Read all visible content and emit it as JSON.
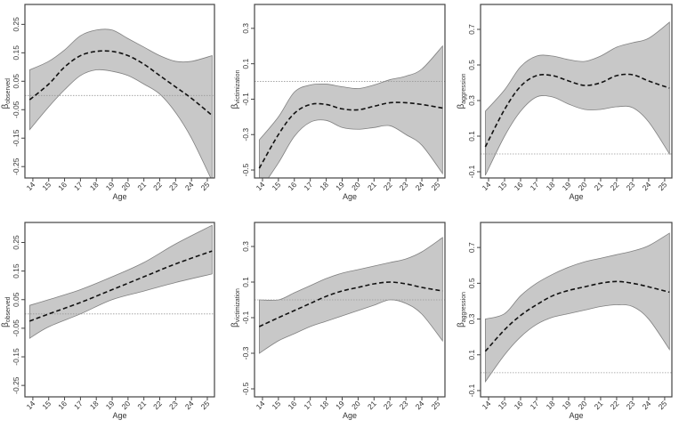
{
  "chart_data": [
    {
      "type": "line",
      "panel": "top-left",
      "xlabel": "Age",
      "ylabel": "β",
      "ylabel_sub": "observed",
      "xlim": [
        13.5,
        25.45
      ],
      "ylim": [
        -0.29,
        0.32
      ],
      "xticks": [
        14,
        15,
        16,
        17,
        18,
        19,
        20,
        21,
        22,
        23,
        24,
        25
      ],
      "yticks": [
        -0.25,
        -0.15,
        -0.05,
        0.05,
        0.15,
        0.25
      ],
      "yticklabels": [
        "-0.25",
        "-0.15",
        "-0.05",
        "0.05",
        "0.15",
        "0.25"
      ],
      "reference_line": 0,
      "x": [
        13.8,
        15,
        16,
        17,
        18,
        19,
        20,
        21,
        22,
        23,
        24,
        25.3
      ],
      "fit": [
        -0.015,
        0.04,
        0.1,
        0.14,
        0.155,
        0.155,
        0.14,
        0.11,
        0.07,
        0.03,
        -0.01,
        -0.07
      ],
      "lower": [
        -0.12,
        -0.04,
        0.02,
        0.07,
        0.09,
        0.085,
        0.07,
        0.04,
        0.005,
        -0.06,
        -0.15,
        -0.3
      ],
      "upper": [
        0.09,
        0.12,
        0.16,
        0.21,
        0.23,
        0.23,
        0.2,
        0.17,
        0.14,
        0.12,
        0.12,
        0.14
      ]
    },
    {
      "type": "line",
      "panel": "top-middle",
      "xlabel": "Age",
      "ylabel": "β",
      "ylabel_sub": "victimization",
      "xlim": [
        13.5,
        25.45
      ],
      "ylim": [
        -0.545,
        0.435
      ],
      "xticks": [
        14,
        15,
        16,
        17,
        18,
        19,
        20,
        21,
        22,
        23,
        24,
        25
      ],
      "yticks": [
        -0.5,
        -0.3,
        -0.1,
        0.1,
        0.3
      ],
      "yticklabels": [
        "-0.5",
        "-0.3",
        "-0.1",
        "0.1",
        "0.3"
      ],
      "reference_line": 0,
      "x": [
        13.8,
        15,
        16,
        17,
        18,
        19,
        20,
        21,
        22,
        23,
        24,
        25.3
      ],
      "fit": [
        -0.49,
        -0.3,
        -0.18,
        -0.13,
        -0.13,
        -0.155,
        -0.16,
        -0.14,
        -0.12,
        -0.12,
        -0.13,
        -0.15
      ],
      "lower": [
        -0.62,
        -0.46,
        -0.31,
        -0.23,
        -0.22,
        -0.26,
        -0.27,
        -0.26,
        -0.25,
        -0.3,
        -0.36,
        -0.52
      ],
      "upper": [
        -0.33,
        -0.2,
        -0.06,
        -0.02,
        -0.015,
        -0.03,
        -0.04,
        -0.02,
        0.01,
        0.03,
        0.07,
        0.2
      ]
    },
    {
      "type": "line",
      "panel": "top-right",
      "xlabel": "Age",
      "ylabel": "β",
      "ylabel_sub": "aggression",
      "xlim": [
        13.5,
        25.45
      ],
      "ylim": [
        -0.135,
        0.84
      ],
      "xticks": [
        14,
        15,
        16,
        17,
        18,
        19,
        20,
        21,
        22,
        23,
        24,
        25
      ],
      "yticks": [
        -0.1,
        0.1,
        0.3,
        0.5,
        0.7
      ],
      "yticklabels": [
        "-0.1",
        "0.1",
        "0.3",
        "0.5",
        "0.7"
      ],
      "reference_line": 0,
      "x": [
        13.8,
        15,
        16,
        17,
        18,
        19,
        20,
        21,
        22,
        23,
        24,
        25.3
      ],
      "fit": [
        0.04,
        0.25,
        0.38,
        0.44,
        0.44,
        0.41,
        0.385,
        0.4,
        0.44,
        0.445,
        0.41,
        0.37
      ],
      "lower": [
        -0.12,
        0.1,
        0.24,
        0.32,
        0.32,
        0.28,
        0.25,
        0.25,
        0.265,
        0.26,
        0.18,
        0.0
      ],
      "upper": [
        0.24,
        0.36,
        0.49,
        0.55,
        0.55,
        0.53,
        0.52,
        0.55,
        0.6,
        0.625,
        0.65,
        0.74
      ]
    },
    {
      "type": "line",
      "panel": "bottom-left",
      "xlabel": "Age",
      "ylabel": "β",
      "ylabel_sub": "observed",
      "xlim": [
        13.5,
        25.45
      ],
      "ylim": [
        -0.29,
        0.32
      ],
      "xticks": [
        14,
        15,
        16,
        17,
        18,
        19,
        20,
        21,
        22,
        23,
        24,
        25
      ],
      "yticks": [
        -0.25,
        -0.15,
        -0.05,
        0.05,
        0.15,
        0.25
      ],
      "yticklabels": [
        "-0.25",
        "-0.15",
        "-0.05",
        "0.05",
        "0.15",
        "0.25"
      ],
      "reference_line": 0,
      "x": [
        13.8,
        15,
        17,
        19,
        21,
        23,
        25.3
      ],
      "fit": [
        -0.025,
        0.0,
        0.04,
        0.085,
        0.13,
        0.175,
        0.22
      ],
      "lower": [
        -0.085,
        -0.045,
        0.0,
        0.05,
        0.08,
        0.11,
        0.14
      ],
      "upper": [
        0.03,
        0.05,
        0.085,
        0.13,
        0.18,
        0.245,
        0.31
      ]
    },
    {
      "type": "line",
      "panel": "bottom-middle",
      "xlabel": "Age",
      "ylabel": "β",
      "ylabel_sub": "victimization",
      "xlim": [
        13.5,
        25.45
      ],
      "ylim": [
        -0.545,
        0.435
      ],
      "xticks": [
        14,
        15,
        16,
        17,
        18,
        19,
        20,
        21,
        22,
        23,
        24,
        25
      ],
      "yticks": [
        -0.5,
        -0.3,
        -0.1,
        0.1,
        0.3
      ],
      "yticklabels": [
        "-0.5",
        "-0.3",
        "-0.1",
        "0.1",
        "0.3"
      ],
      "reference_line": 0,
      "x": [
        13.8,
        15,
        16,
        17,
        18,
        19,
        20,
        21,
        22,
        23,
        24,
        25.3
      ],
      "fit": [
        -0.15,
        -0.1,
        -0.06,
        -0.02,
        0.02,
        0.05,
        0.07,
        0.09,
        0.1,
        0.09,
        0.07,
        0.05
      ],
      "lower": [
        -0.3,
        -0.23,
        -0.19,
        -0.15,
        -0.12,
        -0.09,
        -0.06,
        -0.03,
        0.0,
        -0.02,
        -0.08,
        -0.23
      ],
      "upper": [
        0.0,
        0.0,
        0.04,
        0.08,
        0.12,
        0.15,
        0.17,
        0.19,
        0.21,
        0.23,
        0.27,
        0.35
      ]
    },
    {
      "type": "line",
      "panel": "bottom-right",
      "xlabel": "Age",
      "ylabel": "β",
      "ylabel_sub": "aggression",
      "xlim": [
        13.5,
        25.45
      ],
      "ylim": [
        -0.135,
        0.84
      ],
      "xticks": [
        14,
        15,
        16,
        17,
        18,
        19,
        20,
        21,
        22,
        23,
        24,
        25
      ],
      "yticks": [
        -0.1,
        0.1,
        0.3,
        0.5,
        0.7
      ],
      "yticklabels": [
        "-0.1",
        "0.1",
        "0.3",
        "0.5",
        "0.7"
      ],
      "reference_line": 0,
      "x": [
        13.8,
        15,
        16,
        17,
        18,
        19,
        20,
        21,
        22,
        23,
        24,
        25.3
      ],
      "fit": [
        0.12,
        0.24,
        0.32,
        0.38,
        0.43,
        0.46,
        0.48,
        0.5,
        0.51,
        0.5,
        0.48,
        0.45
      ],
      "lower": [
        -0.05,
        0.1,
        0.2,
        0.27,
        0.31,
        0.33,
        0.35,
        0.37,
        0.38,
        0.37,
        0.3,
        0.13
      ],
      "upper": [
        0.3,
        0.33,
        0.43,
        0.5,
        0.55,
        0.59,
        0.62,
        0.64,
        0.66,
        0.68,
        0.71,
        0.78
      ]
    }
  ],
  "colors": {
    "band": "#c8c8c8",
    "band_edge": "#808080",
    "fit": "#111111",
    "ref": "#999999",
    "frame": "#444444"
  }
}
